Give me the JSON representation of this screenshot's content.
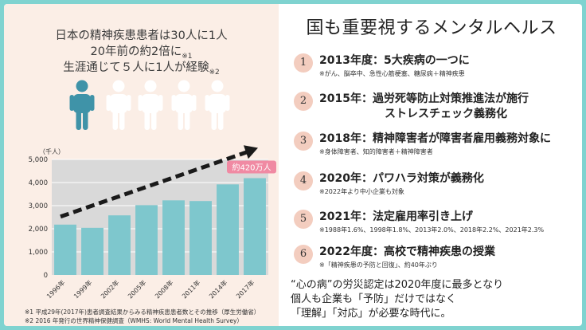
{
  "headline": {
    "line1": "日本の精神疾患患者は30人に1人",
    "line2_main": "20年前の約2倍に",
    "line2_note": "※1",
    "line3_main": "生涯通じて５人に1人が経験",
    "line3_note": "※2"
  },
  "people": {
    "colors": {
      "highlight": "#3f93a8",
      "other": "#ffffff"
    },
    "icons": [
      "person-icon-highlighted",
      "person-icon",
      "person-icon",
      "person-icon",
      "person-icon"
    ]
  },
  "chart_data": {
    "type": "bar",
    "unit_label": "（千人）",
    "categories": [
      "1996年",
      "1999年",
      "2002年",
      "2005年",
      "2008年",
      "2011年",
      "2014年",
      "2017年"
    ],
    "values": [
      2180,
      2040,
      2580,
      3020,
      3230,
      3200,
      3920,
      4190
    ],
    "y_ticks": [
      "0",
      "1,000",
      "2,000",
      "3,000",
      "4,000",
      "5,000"
    ],
    "ylim": [
      0,
      5000
    ],
    "grid": true,
    "highlight_label": "約420万人",
    "colors": {
      "bar": "#7ec7cd",
      "plot_bg": "#d9d9d9",
      "grid": "#ffffff",
      "callout": "#f08aa3",
      "arrow": "#1a1a1a"
    },
    "trend_arrow": true
  },
  "footnotes": [
    "※1 平成29年(2017年)患者調査結果からみる精神疾患患者数とその推移（厚生労働省）",
    "※2 2016 年発行の世界精神保健調査（WMHS: World Mental Health Survey）"
  ],
  "right": {
    "title": "国も重要視するメンタルヘルス",
    "items": [
      {
        "num": "1",
        "title": "2013年度：5大疾病の一つに",
        "sub": "※がん、脳卒中、急性心筋梗塞、糖尿病＋精神疾患"
      },
      {
        "num": "2",
        "title": "2015年：過労死等防止対策推進法が施行",
        "title2": "ストレスチェック義務化"
      },
      {
        "num": "3",
        "title": "2018年：精神障害者が障害者雇用義務対象に",
        "sub": "※身体障害者、知的障害者＋精神障害者"
      },
      {
        "num": "4",
        "title": "2020年：パワハラ対策が義務化",
        "sub": "※2022年より中小企業も対象"
      },
      {
        "num": "5",
        "title": "2021年：法定雇用率引き上げ",
        "sub": "※1988年1.6%、1998年1.8%、2013年2.0%、2018年2.2%、2021年2.3%"
      },
      {
        "num": "6",
        "title": "2022年度：高校で精神疾患の授業",
        "sub": "※「精神疾患の予防と回復」、約40年ぶり"
      }
    ],
    "conclusion": [
      "“心の病”の労災認定は2020年度に最多となり",
      "個人も企業も「予防」だけではなく",
      "「理解」「対応」が必要な時代に。"
    ]
  }
}
